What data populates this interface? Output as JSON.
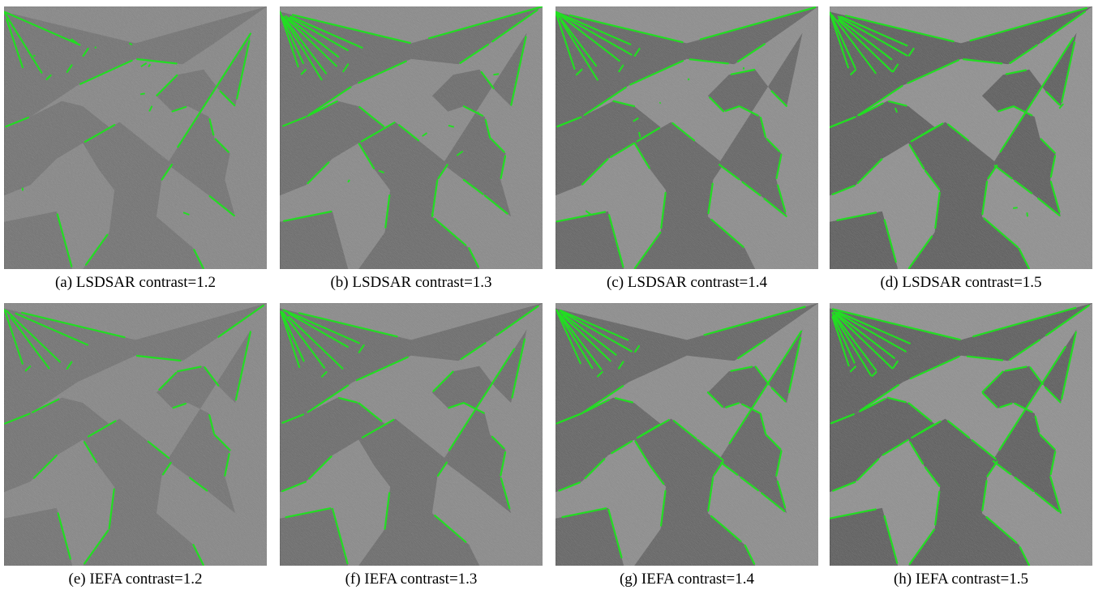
{
  "figure": {
    "panels": [
      {
        "caption": "(a) LSDSAR contrast=1.2",
        "method": "LSDSAR",
        "contrast": 1.2,
        "edge_color": "#22dd22"
      },
      {
        "caption": "(b) LSDSAR contrast=1.3",
        "method": "LSDSAR",
        "contrast": 1.3,
        "edge_color": "#22dd22"
      },
      {
        "caption": "(c) LSDSAR contrast=1.4",
        "method": "LSDSAR",
        "contrast": 1.4,
        "edge_color": "#22dd22"
      },
      {
        "caption": "(d) LSDSAR contrast=1.5",
        "method": "LSDSAR",
        "contrast": 1.5,
        "edge_color": "#22dd22"
      },
      {
        "caption": "(e) IEFA contrast=1.2",
        "method": "IEFA",
        "contrast": 1.2,
        "edge_color": "#22dd22"
      },
      {
        "caption": "(f) IEFA contrast=1.3",
        "method": "IEFA",
        "contrast": 1.3,
        "edge_color": "#22dd22"
      },
      {
        "caption": "(g) IEFA contrast=1.4",
        "method": "IEFA",
        "contrast": 1.4,
        "edge_color": "#22dd22"
      },
      {
        "caption": "(h) IEFA contrast=1.5",
        "method": "IEFA",
        "contrast": 1.5,
        "edge_color": "#22dd22"
      }
    ]
  }
}
